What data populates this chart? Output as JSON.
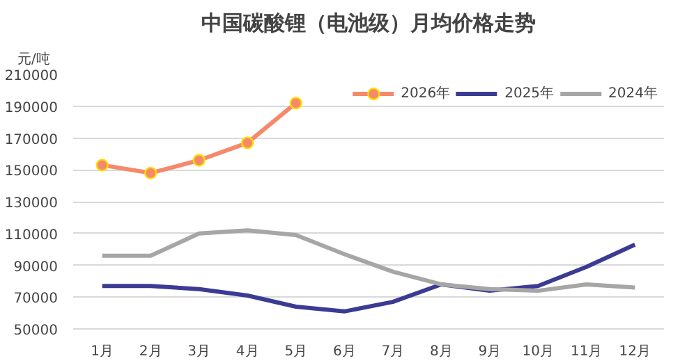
{
  "chart_data": {
    "type": "line",
    "title": "中国碳酸锂（电池级）月均价格走势",
    "ylabel": "元/吨",
    "categories": [
      "1月",
      "2月",
      "3月",
      "4月",
      "5月",
      "6月",
      "7月",
      "8月",
      "9月",
      "10月",
      "11月",
      "12月"
    ],
    "series": [
      {
        "name": "2026年",
        "color": "#f4896b",
        "marker": "circle",
        "values": [
          153000,
          148000,
          156000,
          167000,
          192000,
          null,
          null,
          null,
          null,
          null,
          null,
          null
        ]
      },
      {
        "name": "2025年",
        "color": "#3b3b94",
        "marker": "none",
        "values": [
          77000,
          77000,
          75000,
          71000,
          64000,
          61000,
          67000,
          78000,
          74000,
          77000,
          89000,
          103000
        ]
      },
      {
        "name": "2024年",
        "color": "#a6a6a6",
        "marker": "none",
        "values": [
          96000,
          96000,
          110000,
          112000,
          109000,
          97000,
          86000,
          78000,
          75000,
          74000,
          78000,
          76000
        ]
      }
    ],
    "ylim": [
      50000,
      210000
    ],
    "yticks": [
      50000,
      70000,
      90000,
      110000,
      130000,
      150000,
      170000,
      190000,
      210000
    ],
    "grid": "y",
    "legend": "top right",
    "line_style": "solid"
  }
}
